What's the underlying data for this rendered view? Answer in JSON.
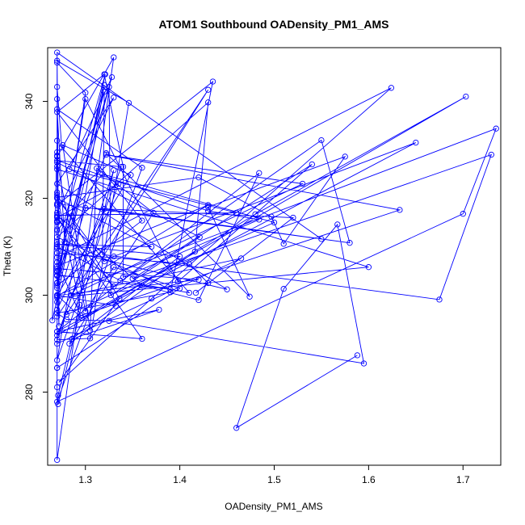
{
  "chart_data": {
    "type": "line",
    "title": "ATOM1 Southbound OADensity_PM1_AMS",
    "xlabel": "OADensity_PM1_AMS",
    "ylabel": "Theta (K)",
    "xlim": [
      1.26,
      1.74
    ],
    "ylim": [
      264.9,
      351.1
    ],
    "x_ticks": [
      1.3,
      1.4,
      1.5,
      1.6,
      1.7
    ],
    "x_tick_labels": [
      "1.3",
      "1.4",
      "1.5",
      "1.6",
      "1.7"
    ],
    "y_ticks": [
      280,
      300,
      320,
      340
    ],
    "y_tick_labels": [
      "280",
      "300",
      "320",
      "340"
    ],
    "grid": false,
    "legend": "none",
    "marker": "open-circle",
    "series": [
      {
        "color": "#0000ff",
        "points": [
          [
            1.588,
            287.6
          ],
          [
            1.46,
            272.6
          ],
          [
            1.51,
            301.3
          ],
          [
            1.567,
            314.6
          ],
          [
            1.595,
            285.9
          ],
          [
            1.325,
            294.7
          ],
          [
            1.28,
            295.0
          ],
          [
            1.27,
            296.3
          ],
          [
            1.39,
            300.6
          ],
          [
            1.435,
            344.1
          ],
          [
            1.27,
            318.6
          ],
          [
            1.27,
            266.0
          ],
          [
            1.33,
            349.1
          ],
          [
            1.27,
            328.6
          ],
          [
            1.27,
            348.4
          ],
          [
            1.346,
            339.7
          ],
          [
            1.305,
            291.1
          ],
          [
            1.27,
            290.8
          ],
          [
            1.33,
            325.8
          ],
          [
            1.271,
            277.5
          ],
          [
            1.271,
            279.3
          ],
          [
            1.294,
            298.0
          ],
          [
            1.27,
            320.7
          ],
          [
            1.336,
            299.3
          ],
          [
            1.272,
            282.0
          ],
          [
            1.37,
            299.3
          ],
          [
            1.624,
            342.8
          ],
          [
            1.27,
            307.8
          ],
          [
            1.27,
            331.9
          ],
          [
            1.265,
            294.8
          ],
          [
            1.321,
            345.6
          ],
          [
            1.27,
            310.0
          ],
          [
            1.337,
            303.0
          ],
          [
            1.41,
            300.5
          ],
          [
            1.275,
            330.5
          ],
          [
            1.27,
            343.0
          ],
          [
            1.27,
            305.5
          ],
          [
            1.42,
            303.2
          ],
          [
            1.27,
            300.0
          ],
          [
            1.348,
            324.8
          ],
          [
            1.276,
            331.0
          ],
          [
            1.305,
            292.7
          ],
          [
            1.312,
            326.2
          ],
          [
            1.372,
            317.0
          ],
          [
            1.283,
            290.0
          ],
          [
            1.416,
            309.0
          ],
          [
            1.43,
            339.8
          ],
          [
            1.27,
            312.0
          ],
          [
            1.39,
            301.2
          ],
          [
            1.27,
            304.2
          ],
          [
            1.322,
            329.3
          ],
          [
            1.474,
            299.7
          ],
          [
            1.43,
            318.2
          ],
          [
            1.575,
            328.6
          ],
          [
            1.51,
            310.6
          ],
          [
            1.497,
            316.2
          ],
          [
            1.42,
            324.3
          ],
          [
            1.27,
            320.2
          ],
          [
            1.27,
            302.5
          ],
          [
            1.3,
            340.5
          ],
          [
            1.398,
            302.8
          ],
          [
            1.54,
            327.0
          ],
          [
            1.35,
            303.4
          ],
          [
            1.73,
            329.0
          ],
          [
            1.675,
            299.1
          ],
          [
            1.318,
            308.4
          ],
          [
            1.32,
            342.0
          ],
          [
            1.27,
            305.0
          ],
          [
            1.27,
            317.0
          ],
          [
            1.33,
            340.8
          ],
          [
            1.27,
            323.0
          ],
          [
            1.45,
            301.2
          ],
          [
            1.27,
            309.7
          ],
          [
            1.27,
            295.6
          ],
          [
            1.43,
            342.4
          ],
          [
            1.28,
            296.0
          ],
          [
            1.5,
            315.0
          ],
          [
            1.318,
            325.0
          ],
          [
            1.27,
            313.3
          ],
          [
            1.27,
            285.0
          ],
          [
            1.27,
            348.0
          ],
          [
            1.3,
            341.8
          ],
          [
            1.272,
            303.7
          ],
          [
            1.32,
            343.4
          ],
          [
            1.27,
            286.6
          ],
          [
            1.335,
            323.0
          ],
          [
            1.27,
            316.0
          ],
          [
            1.33,
            301.8
          ],
          [
            1.55,
            332.0
          ],
          [
            1.58,
            310.8
          ],
          [
            1.32,
            317.8
          ],
          [
            1.27,
            297.0
          ],
          [
            1.27,
            311.0
          ],
          [
            1.27,
            281.0
          ],
          [
            1.27,
            340.5
          ],
          [
            1.27,
            326.0
          ],
          [
            1.6,
            305.8
          ],
          [
            1.27,
            299.5
          ],
          [
            1.27,
            302.0
          ],
          [
            1.36,
            315.4
          ],
          [
            1.27,
            337.8
          ],
          [
            1.32,
            345.6
          ],
          [
            1.34,
            326.5
          ],
          [
            1.34,
            303.7
          ],
          [
            1.484,
            315.6
          ],
          [
            1.43,
            317.4
          ],
          [
            1.27,
            327.8
          ],
          [
            1.338,
            326.5
          ],
          [
            1.27,
            291.7
          ],
          [
            1.48,
            316.7
          ],
          [
            1.703,
            341.0
          ],
          [
            1.296,
            295.3
          ],
          [
            1.27,
            300.0
          ],
          [
            1.735,
            334.4
          ],
          [
            1.7,
            316.8
          ],
          [
            1.27,
            278.0
          ],
          [
            1.36,
            326.3
          ],
          [
            1.27,
            338.4
          ],
          [
            1.278,
            311.0
          ],
          [
            1.27,
            301.5
          ],
          [
            1.325,
            343.0
          ],
          [
            1.327,
            300.0
          ],
          [
            1.421,
            312.0
          ],
          [
            1.27,
            327.4
          ],
          [
            1.3,
            296.7
          ],
          [
            1.33,
            305.8
          ],
          [
            1.4,
            301.4
          ],
          [
            1.27,
            285.0
          ],
          [
            1.27,
            290.0
          ],
          [
            1.465,
            307.6
          ],
          [
            1.285,
            300.0
          ],
          [
            1.53,
            323.0
          ],
          [
            1.322,
            329.0
          ],
          [
            1.633,
            317.6
          ],
          [
            1.295,
            295.8
          ],
          [
            1.27,
            306.8
          ],
          [
            1.328,
            345.0
          ],
          [
            1.283,
            326.0
          ],
          [
            1.46,
            317.0
          ],
          [
            1.27,
            316.5
          ],
          [
            1.36,
            302.0
          ],
          [
            1.42,
            299.0
          ],
          [
            1.484,
            325.2
          ],
          [
            1.27,
            292.5
          ],
          [
            1.65,
            331.5
          ],
          [
            1.33,
            308.0
          ],
          [
            1.32,
            307.0
          ],
          [
            1.27,
            320.0
          ],
          [
            1.37,
            310.0
          ],
          [
            1.27,
            310.5
          ],
          [
            1.4,
            308.0
          ],
          [
            1.286,
            291.0
          ],
          [
            1.378,
            297.0
          ],
          [
            1.27,
            292.5
          ],
          [
            1.36,
            291.0
          ],
          [
            1.272,
            315.4
          ],
          [
            1.27,
            326.6
          ],
          [
            1.27,
            315.0
          ],
          [
            1.27,
            304.0
          ],
          [
            1.27,
            306.0
          ],
          [
            1.43,
            318.6
          ],
          [
            1.27,
            299.8
          ],
          [
            1.27,
            315.4
          ],
          [
            1.27,
            329.5
          ],
          [
            1.27,
            304.8
          ],
          [
            1.27,
            315.2
          ],
          [
            1.27,
            328.8
          ],
          [
            1.27,
            321.2
          ],
          [
            1.27,
            298.6
          ],
          [
            1.3,
            318.0
          ],
          [
            1.52,
            316.0
          ],
          [
            1.417,
            300.5
          ],
          [
            1.43,
            302.5
          ],
          [
            1.41,
            306.4
          ],
          [
            1.27,
            308.7
          ],
          [
            1.27,
            318.9
          ],
          [
            1.55,
            311.6
          ],
          [
            1.27,
            350.1
          ],
          [
            1.272,
            293.6
          ],
          [
            1.27,
            302.6
          ],
          [
            1.27,
            318.6
          ],
          [
            1.27,
            313.6
          ],
          [
            1.27,
            316.2
          ],
          [
            1.27,
            300.0
          ],
          [
            1.332,
            297.8
          ]
        ]
      }
    ]
  }
}
